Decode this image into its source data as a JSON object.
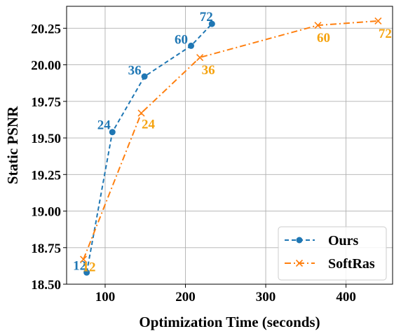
{
  "chart_data": {
    "type": "line",
    "xlabel": "Optimization Time (seconds)",
    "ylabel": "Static PSNR",
    "xlim": [
      52,
      458
    ],
    "ylim": [
      18.5,
      20.4
    ],
    "xticks": [
      100,
      200,
      300,
      400
    ],
    "yticks": [
      18.5,
      18.75,
      19.0,
      19.25,
      19.5,
      19.75,
      20.0,
      20.25
    ],
    "ytick_labels": [
      "18.50",
      "18.75",
      "19.00",
      "19.25",
      "19.50",
      "19.75",
      "20.00",
      "20.25"
    ],
    "grid": true,
    "legend_position": "bottom-right",
    "series": [
      {
        "name": "Ours",
        "color": "#1f77b4",
        "label_color": "#1f77b4",
        "linestyle": "dashed",
        "marker": "circle",
        "x": [
          77,
          109,
          149,
          207,
          233
        ],
        "y": [
          18.58,
          19.54,
          19.92,
          20.13,
          20.28
        ],
        "labels": [
          "12",
          "24",
          "36",
          "60",
          "72"
        ]
      },
      {
        "name": "SoftRas",
        "color": "#ff7f0e",
        "label_color": "#f5a30f",
        "linestyle": "dashdot",
        "marker": "x",
        "x": [
          73,
          145,
          218,
          365,
          440
        ],
        "y": [
          18.67,
          19.67,
          20.05,
          20.27,
          20.3
        ],
        "labels": [
          "12",
          "24",
          "36",
          "60",
          "72"
        ]
      }
    ]
  }
}
